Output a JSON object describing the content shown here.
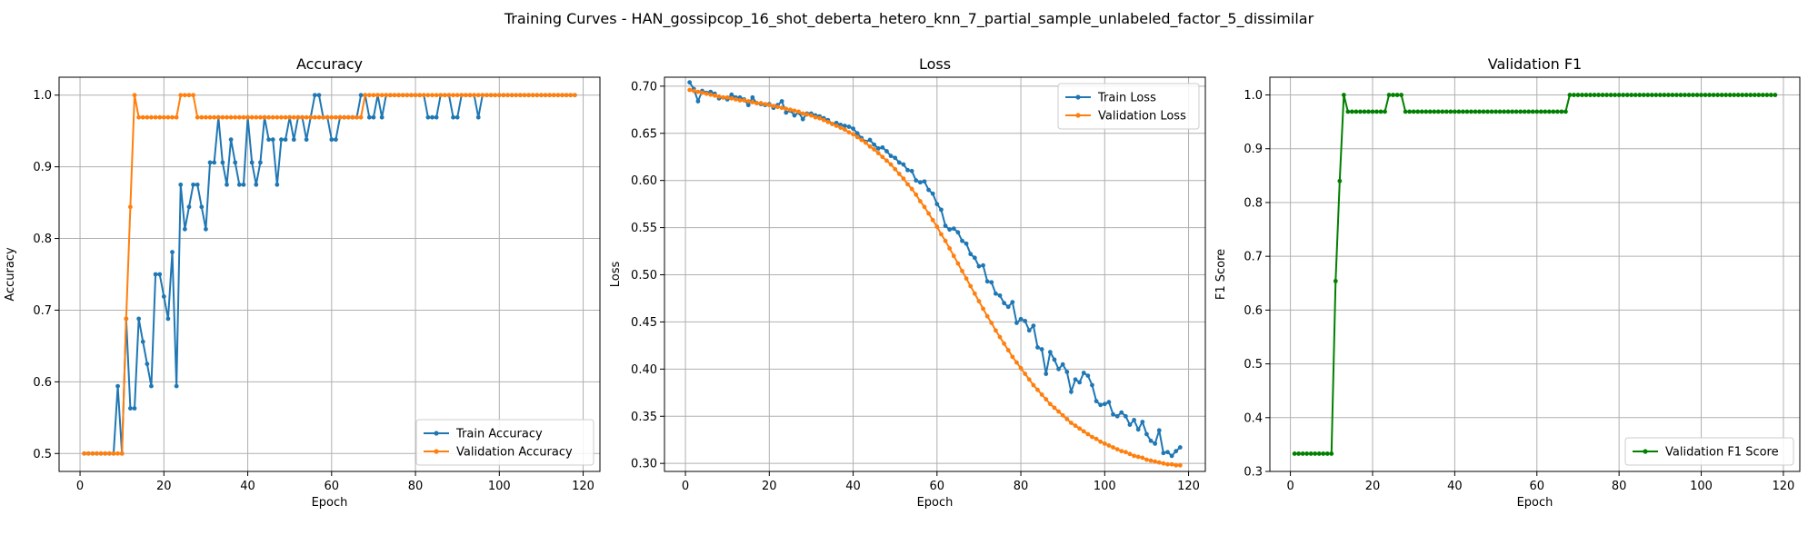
{
  "figure": {
    "title": "Training Curves - HAN_gossipcop_16_shot_deberta_hetero_knn_7_partial_sample_unlabeled_factor_5_dissimilar"
  },
  "colors": {
    "train": "#1f77b4",
    "validation": "#ff7f0e",
    "f1": "#008000"
  },
  "chart_data": [
    {
      "type": "line",
      "title": "Accuracy",
      "xlabel": "Epoch",
      "ylabel": "Accuracy",
      "xlim": [
        -5,
        124
      ],
      "ylim": [
        0.475,
        1.025
      ],
      "xticks": [
        0,
        20,
        40,
        60,
        80,
        100,
        120
      ],
      "yticks": [
        0.5,
        0.6,
        0.7,
        0.8,
        0.9,
        1.0
      ],
      "ytick_labels": [
        "0.5",
        "0.6",
        "0.7",
        "0.8",
        "0.9",
        "1.0"
      ],
      "grid": true,
      "legend": "lower-right",
      "x_start": 1,
      "series": [
        {
          "name": "Train Accuracy",
          "color": "#1f77b4",
          "values": [
            0.5,
            0.5,
            0.5,
            0.5,
            0.5,
            0.5,
            0.5,
            0.5,
            0.594,
            0.5,
            0.688,
            0.563,
            0.563,
            0.688,
            0.656,
            0.625,
            0.594,
            0.75,
            0.75,
            0.719,
            0.688,
            0.781,
            0.594,
            0.875,
            0.813,
            0.844,
            0.875,
            0.875,
            0.844,
            0.813,
            0.906,
            0.906,
            0.969,
            0.906,
            0.875,
            0.938,
            0.906,
            0.875,
            0.875,
            0.969,
            0.906,
            0.875,
            0.906,
            0.969,
            0.938,
            0.938,
            0.875,
            0.938,
            0.938,
            0.969,
            0.938,
            0.969,
            0.969,
            0.938,
            0.969,
            1.0,
            1.0,
            0.969,
            0.969,
            0.938,
            0.938,
            0.969,
            0.969,
            0.969,
            0.969,
            0.969,
            1.0,
            1.0,
            0.969,
            0.969,
            1.0,
            0.969,
            1.0,
            1.0,
            1.0,
            1.0,
            1.0,
            1.0,
            1.0,
            1.0,
            1.0,
            1.0,
            0.969,
            0.969,
            0.969,
            1.0,
            1.0,
            1.0,
            0.969,
            0.969,
            1.0,
            1.0,
            1.0,
            1.0,
            0.969,
            1.0,
            1.0,
            1.0,
            1.0,
            1.0,
            1.0,
            1.0,
            1.0,
            1.0,
            1.0,
            1.0,
            1.0,
            1.0,
            1.0,
            1.0,
            1.0,
            1.0,
            1.0,
            1.0,
            1.0,
            1.0,
            1.0,
            1.0
          ]
        },
        {
          "name": "Validation Accuracy",
          "color": "#ff7f0e",
          "values": [
            0.5,
            0.5,
            0.5,
            0.5,
            0.5,
            0.5,
            0.5,
            0.5,
            0.5,
            0.5,
            0.688,
            0.844,
            1.0,
            0.969,
            0.969,
            0.969,
            0.969,
            0.969,
            0.969,
            0.969,
            0.969,
            0.969,
            0.969,
            1.0,
            1.0,
            1.0,
            1.0,
            0.969,
            0.969,
            0.969,
            0.969,
            0.969,
            0.969,
            0.969,
            0.969,
            0.969,
            0.969,
            0.969,
            0.969,
            0.969,
            0.969,
            0.969,
            0.969,
            0.969,
            0.969,
            0.969,
            0.969,
            0.969,
            0.969,
            0.969,
            0.969,
            0.969,
            0.969,
            0.969,
            0.969,
            0.969,
            0.969,
            0.969,
            0.969,
            0.969,
            0.969,
            0.969,
            0.969,
            0.969,
            0.969,
            0.969,
            0.969,
            1.0,
            1.0,
            1.0,
            1.0,
            1.0,
            1.0,
            1.0,
            1.0,
            1.0,
            1.0,
            1.0,
            1.0,
            1.0,
            1.0,
            1.0,
            1.0,
            1.0,
            1.0,
            1.0,
            1.0,
            1.0,
            1.0,
            1.0,
            1.0,
            1.0,
            1.0,
            1.0,
            1.0,
            1.0,
            1.0,
            1.0,
            1.0,
            1.0,
            1.0,
            1.0,
            1.0,
            1.0,
            1.0,
            1.0,
            1.0,
            1.0,
            1.0,
            1.0,
            1.0,
            1.0,
            1.0,
            1.0,
            1.0,
            1.0,
            1.0,
            1.0
          ]
        }
      ]
    },
    {
      "type": "line",
      "title": "Loss",
      "xlabel": "Epoch",
      "ylabel": "Loss",
      "xlim": [
        -5,
        124
      ],
      "ylim": [
        0.2915,
        0.7095
      ],
      "xticks": [
        0,
        20,
        40,
        60,
        80,
        100,
        120
      ],
      "yticks": [
        0.3,
        0.35,
        0.4,
        0.45,
        0.5,
        0.55,
        0.6,
        0.65,
        0.7
      ],
      "ytick_labels": [
        "0.30",
        "0.35",
        "0.40",
        "0.45",
        "0.50",
        "0.55",
        "0.60",
        "0.65",
        "0.70"
      ],
      "grid": true,
      "legend": "top-right",
      "x_start": 1,
      "series": [
        {
          "name": "Train Loss",
          "color": "#1f77b4",
          "values": [
            0.704,
            0.697,
            0.684,
            0.695,
            0.693,
            0.694,
            0.692,
            0.687,
            0.688,
            0.686,
            0.691,
            0.688,
            0.688,
            0.686,
            0.68,
            0.688,
            0.682,
            0.681,
            0.68,
            0.681,
            0.677,
            0.68,
            0.684,
            0.672,
            0.674,
            0.669,
            0.672,
            0.665,
            0.671,
            0.671,
            0.669,
            0.668,
            0.666,
            0.664,
            0.66,
            0.661,
            0.659,
            0.658,
            0.657,
            0.655,
            0.65,
            0.645,
            0.641,
            0.643,
            0.638,
            0.634,
            0.635,
            0.631,
            0.626,
            0.624,
            0.619,
            0.617,
            0.611,
            0.61,
            0.6,
            0.598,
            0.599,
            0.59,
            0.586,
            0.575,
            0.569,
            0.552,
            0.548,
            0.549,
            0.545,
            0.536,
            0.533,
            0.522,
            0.518,
            0.509,
            0.51,
            0.493,
            0.492,
            0.48,
            0.478,
            0.47,
            0.466,
            0.471,
            0.449,
            0.453,
            0.451,
            0.441,
            0.446,
            0.423,
            0.421,
            0.395,
            0.418,
            0.41,
            0.4,
            0.405,
            0.397,
            0.376,
            0.389,
            0.386,
            0.396,
            0.393,
            0.383,
            0.366,
            0.362,
            0.363,
            0.365,
            0.352,
            0.35,
            0.354,
            0.35,
            0.341,
            0.346,
            0.336,
            0.344,
            0.331,
            0.324,
            0.321,
            0.335,
            0.311,
            0.312,
            0.308,
            0.313,
            0.317
          ]
        },
        {
          "name": "Validation Loss",
          "color": "#ff7f0e",
          "values": [
            0.696,
            0.695,
            0.694,
            0.693,
            0.692,
            0.691,
            0.69,
            0.689,
            0.688,
            0.688,
            0.687,
            0.686,
            0.685,
            0.685,
            0.684,
            0.683,
            0.682,
            0.682,
            0.681,
            0.68,
            0.679,
            0.678,
            0.677,
            0.676,
            0.675,
            0.674,
            0.673,
            0.671,
            0.67,
            0.669,
            0.667,
            0.666,
            0.664,
            0.662,
            0.66,
            0.658,
            0.656,
            0.654,
            0.651,
            0.649,
            0.646,
            0.643,
            0.64,
            0.636,
            0.633,
            0.629,
            0.625,
            0.621,
            0.617,
            0.612,
            0.607,
            0.602,
            0.596,
            0.591,
            0.585,
            0.578,
            0.572,
            0.565,
            0.558,
            0.551,
            0.543,
            0.536,
            0.528,
            0.52,
            0.512,
            0.504,
            0.496,
            0.488,
            0.48,
            0.472,
            0.464,
            0.456,
            0.449,
            0.441,
            0.434,
            0.427,
            0.42,
            0.413,
            0.407,
            0.401,
            0.395,
            0.389,
            0.383,
            0.378,
            0.373,
            0.368,
            0.363,
            0.359,
            0.355,
            0.351,
            0.347,
            0.343,
            0.34,
            0.337,
            0.334,
            0.331,
            0.328,
            0.326,
            0.323,
            0.321,
            0.319,
            0.317,
            0.315,
            0.313,
            0.312,
            0.31,
            0.308,
            0.307,
            0.306,
            0.304,
            0.303,
            0.302,
            0.301,
            0.3,
            0.299,
            0.299,
            0.298,
            0.298
          ]
        }
      ]
    },
    {
      "type": "line",
      "title": "Validation F1",
      "xlabel": "Epoch",
      "ylabel": "F1 Score",
      "xlim": [
        -5,
        124
      ],
      "ylim": [
        0.3,
        1.033
      ],
      "xticks": [
        0,
        20,
        40,
        60,
        80,
        100,
        120
      ],
      "yticks": [
        0.3,
        0.4,
        0.5,
        0.6,
        0.7,
        0.8,
        0.9,
        1.0
      ],
      "ytick_labels": [
        "0.3",
        "0.4",
        "0.5",
        "0.6",
        "0.7",
        "0.8",
        "0.9",
        "1.0"
      ],
      "grid": true,
      "legend": "lower-right",
      "x_start": 1,
      "series": [
        {
          "name": "Validation F1 Score",
          "color": "#008000",
          "values": [
            0.333,
            0.333,
            0.333,
            0.333,
            0.333,
            0.333,
            0.333,
            0.333,
            0.333,
            0.333,
            0.654,
            0.84,
            1.0,
            0.969,
            0.969,
            0.969,
            0.969,
            0.969,
            0.969,
            0.969,
            0.969,
            0.969,
            0.969,
            1.0,
            1.0,
            1.0,
            1.0,
            0.969,
            0.969,
            0.969,
            0.969,
            0.969,
            0.969,
            0.969,
            0.969,
            0.969,
            0.969,
            0.969,
            0.969,
            0.969,
            0.969,
            0.969,
            0.969,
            0.969,
            0.969,
            0.969,
            0.969,
            0.969,
            0.969,
            0.969,
            0.969,
            0.969,
            0.969,
            0.969,
            0.969,
            0.969,
            0.969,
            0.969,
            0.969,
            0.969,
            0.969,
            0.969,
            0.969,
            0.969,
            0.969,
            0.969,
            0.969,
            1.0,
            1.0,
            1.0,
            1.0,
            1.0,
            1.0,
            1.0,
            1.0,
            1.0,
            1.0,
            1.0,
            1.0,
            1.0,
            1.0,
            1.0,
            1.0,
            1.0,
            1.0,
            1.0,
            1.0,
            1.0,
            1.0,
            1.0,
            1.0,
            1.0,
            1.0,
            1.0,
            1.0,
            1.0,
            1.0,
            1.0,
            1.0,
            1.0,
            1.0,
            1.0,
            1.0,
            1.0,
            1.0,
            1.0,
            1.0,
            1.0,
            1.0,
            1.0,
            1.0,
            1.0,
            1.0,
            1.0,
            1.0,
            1.0,
            1.0,
            1.0
          ]
        }
      ]
    }
  ]
}
